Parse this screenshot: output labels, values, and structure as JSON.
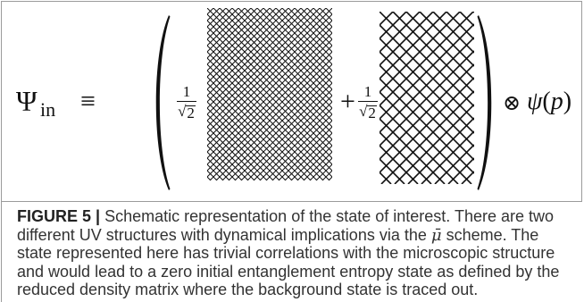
{
  "colors": {
    "frame": "#9b9b9b",
    "ink": "#111111",
    "caption_text": "#333333",
    "caption_label": "#222222"
  },
  "figure": {
    "equation": {
      "lhs_symbol": "Ψ",
      "lhs_subscript": "in",
      "relation": "≡",
      "terms": [
        {
          "numerator": "1",
          "radical": "√",
          "radicand": "2"
        },
        {
          "operator": "+",
          "numerator": "1",
          "radical": "√",
          "radicand": "2"
        }
      ],
      "tensor_product": "⊗",
      "rhs_function": "ψ",
      "rhs_open": "(",
      "rhs_argument": "p",
      "rhs_close": ")"
    }
  },
  "caption": {
    "label": "FIGURE 5 |",
    "line1": "Schematic representation of the state of interest. There are two",
    "line2_before": "different UV structures with dynamical implications via the",
    "line2_symbol": "μ̄",
    "line2_after": "scheme. The",
    "line3": "state represented here has trivial correlations with the microscopic structure",
    "line4": "and would lead to a zero initial entanglement entropy state as defined by the",
    "line5": "reduced density matrix where the background state is traced out."
  }
}
